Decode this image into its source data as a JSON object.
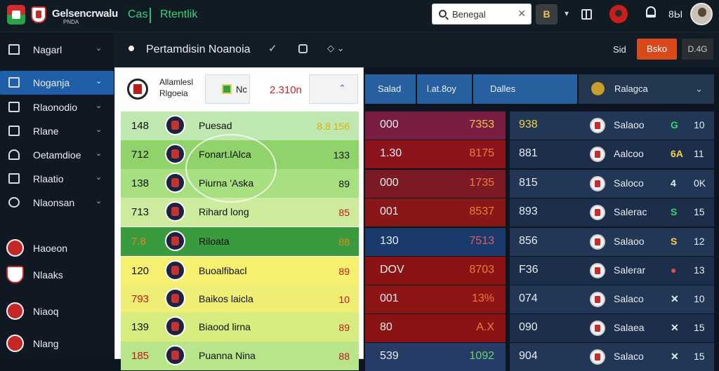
{
  "topbar": {
    "brand_title": "Gelsencrwalu",
    "brand_sub": "PNDA",
    "nav_left": "Cas",
    "nav_right": "Rtentlik",
    "search_value": "Benegal",
    "search_clear": "✕",
    "button_label": "B",
    "caret": "▾",
    "count": "8Ы"
  },
  "sidebar": {
    "items": [
      {
        "label": "Nagarl",
        "chev": "⌄"
      },
      {
        "label": "Noganja",
        "chev": "⌄"
      },
      {
        "label": "Rlaonodio",
        "chev": "⌄"
      },
      {
        "label": "Rlane",
        "chev": "⌄"
      },
      {
        "label": "Oetamdioe",
        "chev": "⌄"
      },
      {
        "label": "Rlaatio",
        "chev": "⌄"
      },
      {
        "label": "Nlaonsan",
        "chev": "⌄"
      },
      {
        "label": "Haoeon"
      },
      {
        "label": "Nlaaks"
      },
      {
        "label": "Niaoq"
      },
      {
        "label": "Nlang"
      }
    ]
  },
  "subbar": {
    "title": "Pertamdisin Noanoia",
    "check": "✓",
    "dd": "◇ ⌄",
    "sid": "Sid",
    "btn_red": "Bsko",
    "btn_dark": "D.4G"
  },
  "panel": {
    "t1": "Allamlesl",
    "t2": "Rlgoeia",
    "nc": "Nc",
    "val": "2.310n",
    "up": "⌃",
    "rows": [
      {
        "num": "148",
        "name": "Puesad",
        "score": "8.8 156",
        "bg": "#bfe7b0",
        "numc": "#111",
        "sc": "#d9b300"
      },
      {
        "num": "712",
        "name": "Fonart.lAlca",
        "score": "133",
        "bg": "#8fd36a",
        "numc": "#111",
        "sc": "#111"
      },
      {
        "num": "138",
        "name": "Piurna 'Aska",
        "score": "89",
        "bg": "#a8df80",
        "numc": "#111",
        "sc": "#111"
      },
      {
        "num": "713",
        "name": "Rihard long",
        "score": "85",
        "bg": "#cceb9c",
        "numc": "#111",
        "sc": "#c01919"
      },
      {
        "num": "7.8",
        "name": "Riloata",
        "score": "88",
        "bg": "#3a9a3e",
        "numc": "#e38a1c",
        "sc": "#e38a1c"
      },
      {
        "num": "120",
        "name": "Buoalfibacl",
        "score": "89",
        "bg": "#f5f070",
        "numc": "#111",
        "sc": "#c01919"
      },
      {
        "num": "793",
        "name": "Baikos laicla",
        "score": "10",
        "bg": "#eeee74",
        "numc": "#c01919",
        "sc": "#c01919"
      },
      {
        "num": "139",
        "name": "Biaood lirna",
        "score": "89",
        "bg": "#d7ec7e",
        "numc": "#111",
        "sc": "#c01919"
      },
      {
        "num": "185",
        "name": "Puanna Nina",
        "score": "88",
        "bg": "#b8e48a",
        "numc": "#c01919",
        "sc": "#c01919"
      }
    ]
  },
  "middle": {
    "headers": [
      "Salad",
      "l.at.8oy",
      "Dalles"
    ],
    "rows": [
      {
        "l": "000",
        "r": "7353",
        "bg": "#7a1d43",
        "rc": "#f1c24b"
      },
      {
        "l": "1.30",
        "r": "8175",
        "bg": "#8c141c",
        "rc": "#f07a3a"
      },
      {
        "l": "000",
        "r": "1735",
        "bg": "#7b1a24",
        "rc": "#f07a3a"
      },
      {
        "l": "001",
        "r": "8537",
        "bg": "#8a1717",
        "rc": "#f07a3a"
      },
      {
        "l": "130",
        "r": "7513",
        "bg": "#193a6b",
        "rc": "#e06060"
      },
      {
        "l": "DOV",
        "r": "8703",
        "bg": "#8a1414",
        "rc": "#f07a3a"
      },
      {
        "l": "001",
        "r": "13%",
        "bg": "#8e1515",
        "rc": "#f07a3a"
      },
      {
        "l": "80",
        "r": "A.X",
        "bg": "#8a1414",
        "rc": "#f07a3a"
      },
      {
        "l": "539",
        "r": "1092",
        "bg": "#263b66",
        "rc": "#6ed36e"
      }
    ]
  },
  "right": {
    "header_title": "Ralagca",
    "header_chev": "⌄",
    "rows": [
      {
        "n1": "938",
        "name": "Salaoo",
        "ic": "G",
        "icc": "#3fd36e",
        "n2": "10",
        "n1c": "#f3d34a"
      },
      {
        "n1": "881",
        "name": "Aalcoo",
        "ic": "6A",
        "icc": "#f3d34a",
        "n2": "11",
        "n1c": "#e6ecf2"
      },
      {
        "n1": "815",
        "name": "Saloco",
        "ic": "4",
        "icc": "#e6ecf2",
        "n2": "0K",
        "n1c": "#e6ecf2"
      },
      {
        "n1": "893",
        "name": "Salerac",
        "ic": "S",
        "icc": "#3fd36e",
        "n2": "15",
        "n1c": "#e6ecf2"
      },
      {
        "n1": "856",
        "name": "Salaoo",
        "ic": "S",
        "icc": "#f3d34a",
        "n2": "12",
        "n1c": "#e6ecf2"
      },
      {
        "n1": "F36",
        "name": "Salerar",
        "ic": "●",
        "icc": "#e05050",
        "n2": "13",
        "n1c": "#e6ecf2"
      },
      {
        "n1": "074",
        "name": "Salaco",
        "ic": "✕",
        "icc": "#e6ecf2",
        "n2": "10",
        "n1c": "#e6ecf2"
      },
      {
        "n1": "090",
        "name": "Salaea",
        "ic": "✕",
        "icc": "#e6ecf2",
        "n2": "15",
        "n1c": "#e6ecf2"
      },
      {
        "n1": "904",
        "name": "Salaco",
        "ic": "✕",
        "icc": "#e6ecf2",
        "n2": "15",
        "n1c": "#e6ecf2"
      }
    ]
  }
}
